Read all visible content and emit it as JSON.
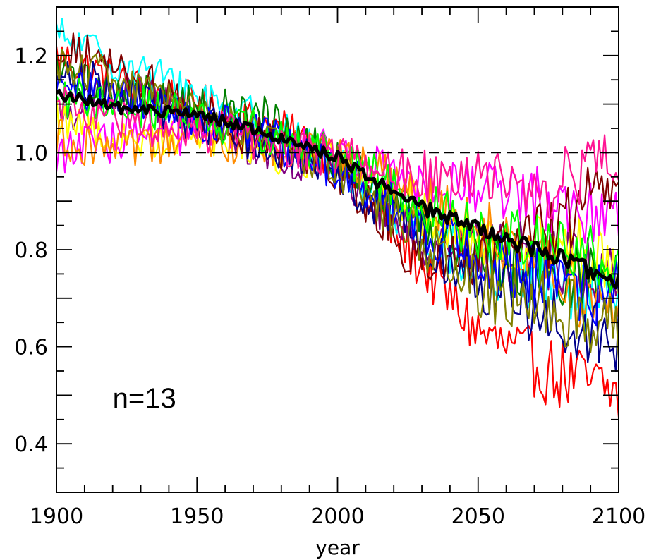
{
  "chart_data": {
    "type": "line",
    "xlabel": "year",
    "ylabel": "",
    "xlim": [
      1900,
      2100
    ],
    "ylim": [
      0.3,
      1.3
    ],
    "xticks": [
      1900,
      1950,
      2000,
      2050,
      2100
    ],
    "xtick_labels": [
      "1900",
      "1950",
      "2000",
      "2050",
      "2100"
    ],
    "yticks": [
      0.4,
      0.6,
      0.8,
      1.0,
      1.2
    ],
    "ytick_labels": [
      "0.4",
      "0.6",
      "0.8",
      "1.0",
      "1.2"
    ],
    "reference_line": {
      "y": 1.0,
      "style": "dashed",
      "color": "#000000"
    },
    "annotation": {
      "text": "n=13",
      "x": 1925,
      "y": 0.495
    },
    "grid": false,
    "legend": "none",
    "series_colors": [
      "#ff0000",
      "#00ffff",
      "#800080",
      "#ffff00",
      "#008000",
      "#ff00ff",
      "#ff8c00",
      "#800000",
      "#00008b",
      "#0000ff",
      "#808000",
      "#00ff00",
      "#ff1493"
    ],
    "mean_color": "#000000",
    "series": [
      {
        "x": [
          1900,
          1925,
          1950,
          1975,
          2000,
          2025,
          2050,
          2075,
          2100
        ],
        "values": [
          1.2,
          1.14,
          1.1,
          1.06,
          0.99,
          0.8,
          0.63,
          0.55,
          0.5
        ],
        "color": "#ff0000"
      },
      {
        "x": [
          1900,
          1925,
          1950,
          1975,
          2000,
          2025,
          2050,
          2075,
          2100
        ],
        "values": [
          1.24,
          1.18,
          1.12,
          1.06,
          0.98,
          0.86,
          0.77,
          0.72,
          0.68
        ],
        "color": "#00ffff"
      },
      {
        "x": [
          1900,
          1925,
          1950,
          1975,
          2000,
          2025,
          2050,
          2075,
          2100
        ],
        "values": [
          1.08,
          1.13,
          1.07,
          1.0,
          0.97,
          0.83,
          0.8,
          0.79,
          0.74
        ],
        "color": "#800080"
      },
      {
        "x": [
          1900,
          1925,
          1950,
          1975,
          2000,
          2025,
          2050,
          2075,
          2100
        ],
        "values": [
          1.08,
          1.02,
          1.05,
          1.0,
          0.98,
          0.9,
          0.82,
          0.8,
          0.79
        ],
        "color": "#ffff00"
      },
      {
        "x": [
          1900,
          1925,
          1950,
          1975,
          2000,
          2025,
          2050,
          2075,
          2100
        ],
        "values": [
          1.16,
          1.12,
          1.1,
          1.07,
          0.98,
          0.88,
          0.79,
          0.75,
          0.72
        ],
        "color": "#008000"
      },
      {
        "x": [
          1900,
          1925,
          1950,
          1975,
          2000,
          2025,
          2050,
          2075,
          2100
        ],
        "values": [
          1.0,
          1.03,
          1.04,
          1.02,
          1.0,
          0.95,
          0.93,
          0.9,
          0.88
        ],
        "color": "#ff00ff"
      },
      {
        "x": [
          1900,
          1925,
          1950,
          1975,
          2000,
          2025,
          2050,
          2075,
          2100
        ],
        "values": [
          1.03,
          1.0,
          1.03,
          1.01,
          0.99,
          0.93,
          0.85,
          0.77,
          0.64
        ],
        "color": "#ff8c00"
      },
      {
        "x": [
          1900,
          1925,
          1950,
          1975,
          2000,
          2025,
          2050,
          2075,
          2100
        ],
        "values": [
          1.22,
          1.17,
          1.08,
          1.02,
          0.96,
          0.8,
          0.78,
          0.83,
          0.96
        ],
        "color": "#800000"
      },
      {
        "x": [
          1900,
          1925,
          1950,
          1975,
          2000,
          2025,
          2050,
          2075,
          2100
        ],
        "values": [
          1.17,
          1.12,
          1.06,
          1.02,
          0.96,
          0.84,
          0.74,
          0.66,
          0.6
        ],
        "color": "#00008b"
      },
      {
        "x": [
          1900,
          1925,
          1950,
          1975,
          2000,
          2025,
          2050,
          2075,
          2100
        ],
        "values": [
          1.14,
          1.11,
          1.07,
          1.03,
          0.96,
          0.87,
          0.78,
          0.73,
          0.7
        ],
        "color": "#0000ff"
      },
      {
        "x": [
          1900,
          1925,
          1950,
          1975,
          2000,
          2025,
          2050,
          2075,
          2100
        ],
        "values": [
          1.19,
          1.14,
          1.08,
          1.03,
          0.97,
          0.84,
          0.72,
          0.68,
          0.63
        ],
        "color": "#808000"
      },
      {
        "x": [
          1900,
          1925,
          1950,
          1975,
          2000,
          2025,
          2050,
          2075,
          2100
        ],
        "values": [
          1.12,
          1.1,
          1.07,
          1.04,
          0.99,
          0.91,
          0.84,
          0.8,
          0.76
        ],
        "color": "#00ff00"
      },
      {
        "x": [
          1900,
          1925,
          1950,
          1975,
          2000,
          2025,
          2050,
          2075,
          2100
        ],
        "values": [
          1.1,
          1.06,
          1.05,
          1.02,
          0.99,
          0.96,
          0.94,
          0.93,
          0.97
        ],
        "color": "#ff1493"
      },
      {
        "x": [
          1900,
          1925,
          1950,
          1975,
          2000,
          2025,
          2050,
          2075,
          2100
        ],
        "values": [
          1.12,
          1.09,
          1.08,
          1.04,
          0.99,
          0.9,
          0.84,
          0.79,
          0.73
        ],
        "color": "#000000",
        "bold": true
      }
    ]
  }
}
